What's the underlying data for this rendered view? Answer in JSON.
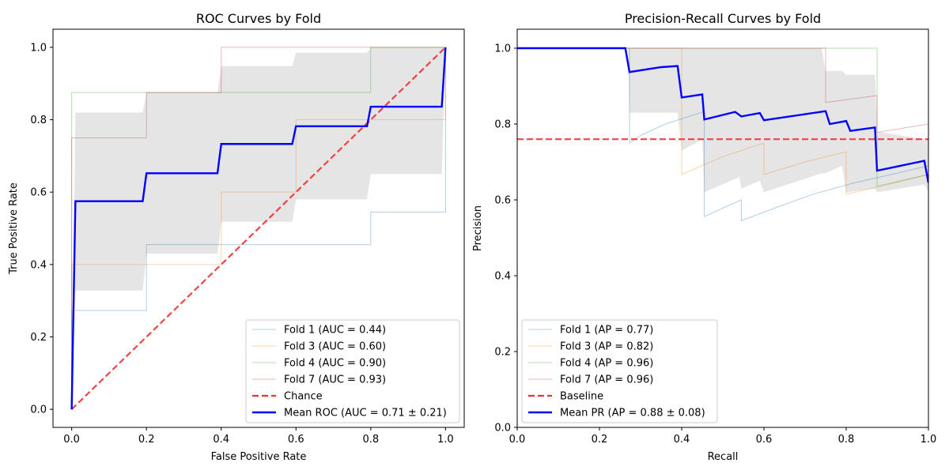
{
  "colors": {
    "fold1": "#1f77b4",
    "fold3": "#ff7f0e",
    "fold4": "#2ca02c",
    "fold7": "#d62728",
    "ref": "#f03030",
    "mean": "#0000ff",
    "band": "#b0b0b0"
  },
  "chart_data": [
    {
      "type": "line",
      "title": "ROC Curves by Fold",
      "xlabel": "False Positive Rate",
      "ylabel": "True Positive Rate",
      "xlim": [
        -0.05,
        1.05
      ],
      "ylim": [
        -0.05,
        1.05
      ],
      "xticks": [
        "0.0",
        "0.2",
        "0.4",
        "0.6",
        "0.8",
        "1.0"
      ],
      "yticks": [
        "0.0",
        "0.2",
        "0.4",
        "0.6",
        "0.8",
        "1.0"
      ],
      "legend_position": "lower-right",
      "series": [
        {
          "name": "Fold 1 (AUC = 0.44)",
          "color_key": "fold1",
          "style": "thin",
          "x": [
            0,
            0,
            0.2,
            0.2,
            0.8,
            0.8,
            1.0,
            1.0
          ],
          "y": [
            0,
            0.273,
            0.273,
            0.455,
            0.455,
            0.545,
            0.545,
            1.0
          ]
        },
        {
          "name": "Fold 3 (AUC = 0.60)",
          "color_key": "fold3",
          "style": "thin",
          "x": [
            0,
            0,
            0.4,
            0.4,
            0.6,
            0.6,
            1.0,
            1.0
          ],
          "y": [
            0,
            0.4,
            0.4,
            0.6,
            0.6,
            0.8,
            0.8,
            1.0
          ]
        },
        {
          "name": "Fold 4 (AUC = 0.90)",
          "color_key": "fold4",
          "style": "thin",
          "x": [
            0,
            0,
            0.8,
            0.8,
            1.0
          ],
          "y": [
            0,
            0.875,
            0.875,
            1.0,
            1.0
          ]
        },
        {
          "name": "Fold 7 (AUC = 0.93)",
          "color_key": "fold7",
          "style": "thin",
          "x": [
            0,
            0,
            0.2,
            0.2,
            0.4,
            0.4,
            1.0
          ],
          "y": [
            0,
            0.75,
            0.75,
            0.875,
            0.875,
            1.0,
            1.0
          ]
        },
        {
          "name": "Chance",
          "color_key": "ref",
          "style": "dashed",
          "x": [
            0,
            1
          ],
          "y": [
            0,
            1
          ]
        },
        {
          "name": "Mean ROC (AUC = 0.71 ± 0.21)",
          "color_key": "mean",
          "style": "thick",
          "x": [
            0,
            0.01,
            0.19,
            0.2,
            0.39,
            0.4,
            0.59,
            0.6,
            0.79,
            0.8,
            0.99,
            1.0
          ],
          "y": [
            0,
            0.575,
            0.575,
            0.652,
            0.652,
            0.733,
            0.733,
            0.782,
            0.782,
            0.836,
            0.836,
            1.0
          ]
        }
      ],
      "band": {
        "color_key": "band",
        "x": [
          0,
          0.01,
          0.19,
          0.2,
          0.39,
          0.4,
          0.59,
          0.6,
          0.79,
          0.8,
          0.99,
          1.0
        ],
        "upper": [
          0,
          0.82,
          0.82,
          0.875,
          0.875,
          0.948,
          0.948,
          0.985,
          0.985,
          1.0,
          1.0,
          1.0
        ],
        "lower": [
          0,
          0.328,
          0.328,
          0.43,
          0.43,
          0.518,
          0.518,
          0.58,
          0.58,
          0.65,
          0.65,
          1.0
        ]
      }
    },
    {
      "type": "line",
      "title": "Precision-Recall Curves by Fold",
      "xlabel": "Recall",
      "ylabel": "Precision",
      "xlim": [
        0,
        1
      ],
      "ylim": [
        0,
        1.05
      ],
      "xticks": [
        "0.0",
        "0.2",
        "0.4",
        "0.6",
        "0.8",
        "1.0"
      ],
      "yticks": [
        "0.0",
        "0.2",
        "0.4",
        "0.6",
        "0.8",
        "1.0"
      ],
      "legend_position": "lower-left",
      "series": [
        {
          "name": "Fold 1 (AP = 0.77)",
          "color_key": "fold1",
          "style": "thin",
          "x": [
            0,
            0.273,
            0.273,
            0.3,
            0.36,
            0.455,
            0.455,
            0.545,
            0.545,
            0.63,
            0.72,
            0.82,
            0.91,
            1.0
          ],
          "y": [
            1.0,
            1.0,
            0.75,
            0.77,
            0.8,
            0.833,
            0.556,
            0.6,
            0.545,
            0.58,
            0.615,
            0.645,
            0.667,
            0.69
          ]
        },
        {
          "name": "Fold 3 (AP = 0.82)",
          "color_key": "fold3",
          "style": "thin",
          "x": [
            0,
            0.4,
            0.4,
            0.5,
            0.6,
            0.6,
            0.7,
            0.8,
            0.8,
            0.9,
            1.0
          ],
          "y": [
            1.0,
            1.0,
            0.667,
            0.714,
            0.75,
            0.667,
            0.7,
            0.727,
            0.615,
            0.64,
            0.667
          ]
        },
        {
          "name": "Fold 4 (AP = 0.96)",
          "color_key": "fold4",
          "style": "thin",
          "x": [
            0,
            0.875,
            0.875,
            1.0
          ],
          "y": [
            1.0,
            1.0,
            0.636,
            0.667
          ]
        },
        {
          "name": "Fold 7 (AP = 0.96)",
          "color_key": "fold7",
          "style": "thin",
          "x": [
            0,
            0.75,
            0.75,
            0.875,
            0.875,
            1.0
          ],
          "y": [
            1.0,
            1.0,
            0.857,
            0.875,
            0.778,
            0.8
          ]
        },
        {
          "name": "Baseline",
          "color_key": "ref",
          "style": "dashed",
          "x": [
            0,
            1
          ],
          "y": [
            0.76,
            0.76
          ]
        },
        {
          "name": "Mean PR (AP = 0.88 ± 0.08)",
          "color_key": "mean",
          "style": "thick",
          "x": [
            0,
            0.263,
            0.273,
            0.35,
            0.39,
            0.4,
            0.45,
            0.455,
            0.53,
            0.545,
            0.59,
            0.6,
            0.75,
            0.76,
            0.8,
            0.81,
            0.87,
            0.875,
            0.99,
            1.0
          ],
          "y": [
            1.0,
            1.0,
            0.937,
            0.95,
            0.953,
            0.87,
            0.878,
            0.812,
            0.832,
            0.82,
            0.829,
            0.81,
            0.834,
            0.8,
            0.808,
            0.782,
            0.791,
            0.677,
            0.703,
            0.645
          ]
        }
      ],
      "band": {
        "color_key": "band",
        "x": [
          0,
          0.27,
          0.273,
          0.39,
          0.4,
          0.45,
          0.455,
          0.54,
          0.545,
          0.59,
          0.6,
          0.74,
          0.75,
          0.79,
          0.8,
          0.87,
          0.875,
          0.99,
          1.0
        ],
        "upper": [
          1.0,
          1.0,
          1.0,
          1.0,
          1.0,
          1.0,
          1.0,
          1.0,
          1.0,
          1.0,
          1.0,
          1.0,
          0.94,
          0.94,
          0.93,
          0.93,
          0.78,
          0.76,
          0.76
        ],
        "lower": [
          1.0,
          1.0,
          0.83,
          0.83,
          0.73,
          0.76,
          0.62,
          0.66,
          0.63,
          0.65,
          0.62,
          0.67,
          0.67,
          0.69,
          0.62,
          0.63,
          0.62,
          0.64,
          0.62
        ]
      }
    }
  ]
}
